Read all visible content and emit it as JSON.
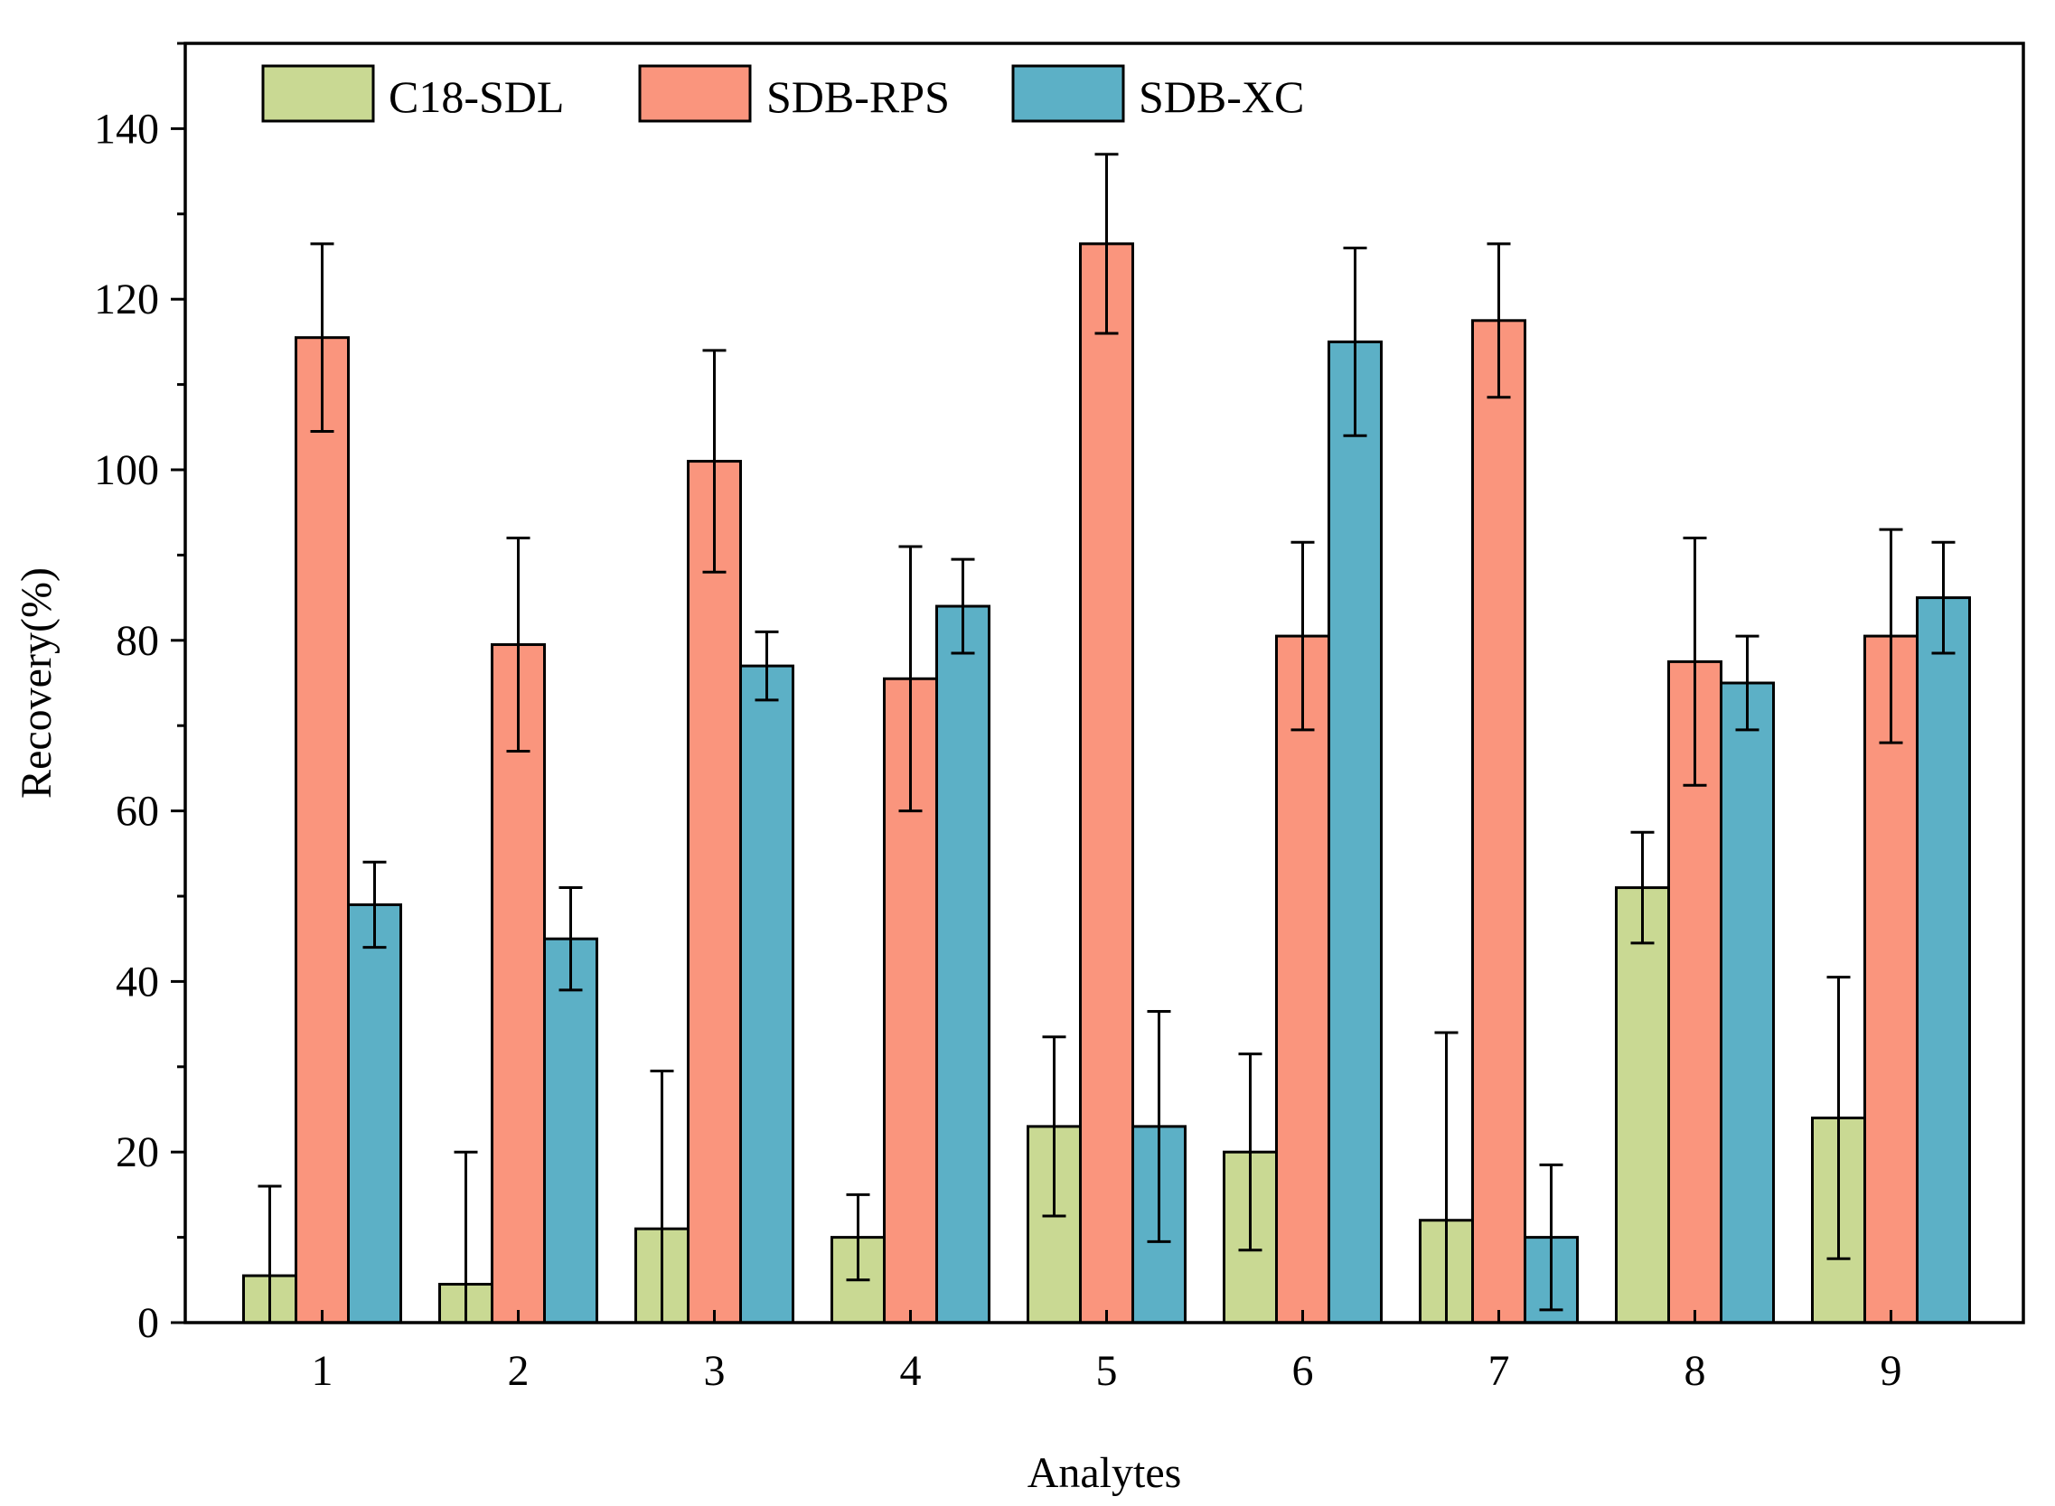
{
  "chart_data": {
    "type": "bar",
    "title": "",
    "xlabel": "Analytes",
    "ylabel": "Recovery(%)",
    "ylim": [
      0,
      150
    ],
    "yticks": [
      0,
      20,
      40,
      60,
      80,
      100,
      120,
      140
    ],
    "ytick_labels": [
      "0",
      "20",
      "40",
      "60",
      "80",
      "100",
      "120",
      "140"
    ],
    "categories": [
      "1",
      "2",
      "3",
      "4",
      "5",
      "6",
      "7",
      "8",
      "9"
    ],
    "legend_position": "top-left",
    "grid": false,
    "series": [
      {
        "name": "C18-SDL",
        "color": "#c9d993",
        "values": [
          5.5,
          4.5,
          11,
          10,
          23,
          20,
          12,
          51,
          24
        ],
        "errors": [
          10.5,
          15.5,
          18.5,
          5,
          10.5,
          11.5,
          22,
          6.5,
          16.5
        ]
      },
      {
        "name": "SDB-RPS",
        "color": "#fa957d",
        "values": [
          115.5,
          79.5,
          101,
          75.5,
          126.5,
          80.5,
          117.5,
          77.5,
          80.5
        ],
        "errors": [
          11,
          12.5,
          13,
          15.5,
          10.5,
          11,
          9,
          14.5,
          12.5
        ]
      },
      {
        "name": "SDB-XC",
        "color": "#5cb0c6",
        "values": [
          49,
          45,
          77,
          84,
          23,
          115,
          10,
          75,
          85
        ],
        "errors": [
          5,
          6,
          4,
          5.5,
          13.5,
          11,
          8.5,
          5.5,
          6.5
        ]
      }
    ]
  }
}
